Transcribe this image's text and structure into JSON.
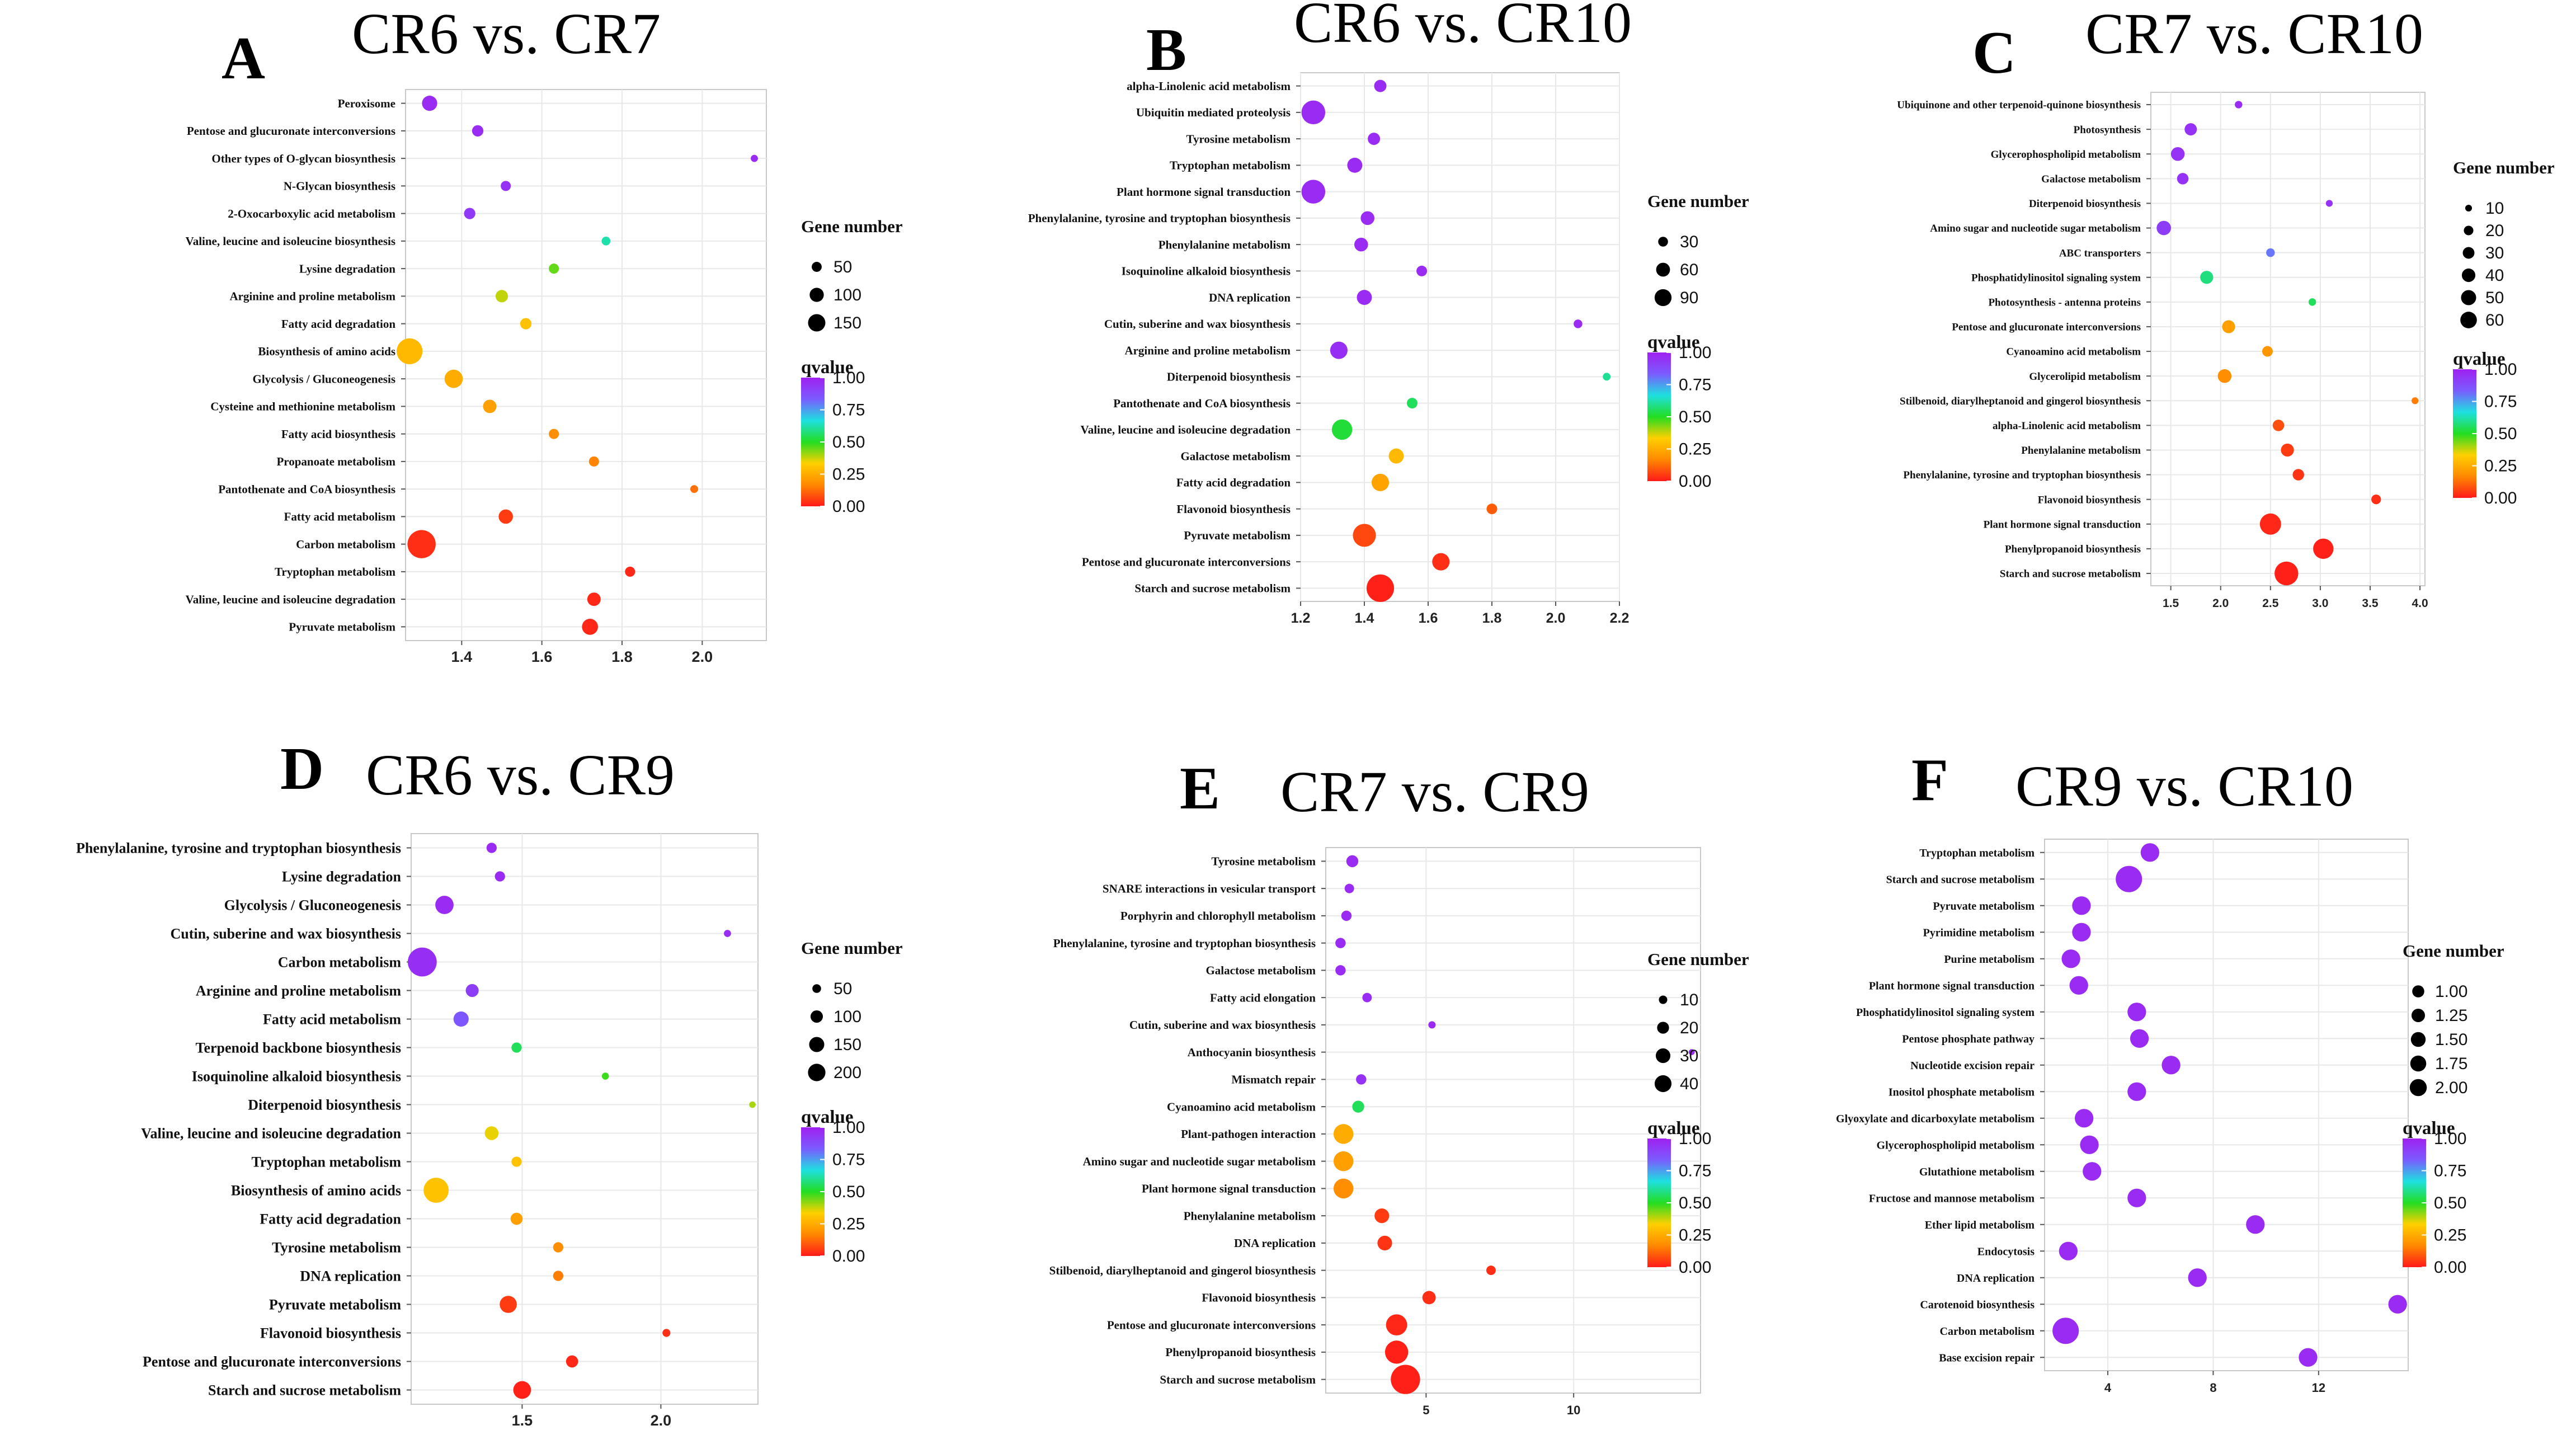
{
  "legend_labels": {
    "size_title": "Gene number",
    "color_title": "qvalue"
  },
  "colors": {
    "gradient": [
      "#ff1a1a",
      "#ff8800",
      "#ffd000",
      "#22dd22",
      "#1ee0e0",
      "#7a5cff",
      "#a020f0"
    ],
    "panel_bg": "#ffffff",
    "grid": "#e8e8e8"
  },
  "chart_data": [
    {
      "type": "scatter",
      "letter": "A",
      "title": "CR6 vs. CR7",
      "xlim": [
        1.26,
        2.16
      ],
      "xticks": [
        "1.4",
        "1.6",
        "1.8",
        "2.0"
      ],
      "xtick_values": [
        1.4,
        1.6,
        1.8,
        2.0
      ],
      "size_legend": [
        50,
        100,
        150
      ],
      "size_max": 160,
      "color_ticks": [
        "1.00",
        "0.75",
        "0.50",
        "0.25",
        "0.00"
      ],
      "points": [
        {
          "label": "Peroxisome",
          "x": 1.32,
          "size": 45,
          "q": 0.97
        },
        {
          "label": "Pentose and glucuronate interconversions",
          "x": 1.44,
          "size": 25,
          "q": 0.97
        },
        {
          "label": "Other types of O-glycan biosynthesis",
          "x": 2.13,
          "size": 10,
          "q": 0.97
        },
        {
          "label": "N-Glycan biosynthesis",
          "x": 1.51,
          "size": 20,
          "q": 0.95
        },
        {
          "label": "2-Oxocarboxylic acid metabolism",
          "x": 1.42,
          "size": 25,
          "q": 0.93
        },
        {
          "label": "Valine, leucine and isoleucine biosynthesis",
          "x": 1.76,
          "size": 15,
          "q": 0.62
        },
        {
          "label": "Lysine degradation",
          "x": 1.63,
          "size": 20,
          "q": 0.45
        },
        {
          "label": "Arginine and proline metabolism",
          "x": 1.5,
          "size": 30,
          "q": 0.38
        },
        {
          "label": "Fatty acid degradation",
          "x": 1.56,
          "size": 25,
          "q": 0.3
        },
        {
          "label": "Biosynthesis of amino acids",
          "x": 1.27,
          "size": 130,
          "q": 0.28
        },
        {
          "label": "Glycolysis / Gluconeogenesis",
          "x": 1.38,
          "size": 65,
          "q": 0.25
        },
        {
          "label": "Cysteine and methionine metabolism",
          "x": 1.47,
          "size": 35,
          "q": 0.22
        },
        {
          "label": "Fatty acid biosynthesis",
          "x": 1.63,
          "size": 20,
          "q": 0.18
        },
        {
          "label": "Propanoate metabolism",
          "x": 1.73,
          "size": 20,
          "q": 0.16
        },
        {
          "label": "Pantothenate and CoA biosynthesis",
          "x": 1.98,
          "size": 12,
          "q": 0.13
        },
        {
          "label": "Fatty acid metabolism",
          "x": 1.51,
          "size": 40,
          "q": 0.05
        },
        {
          "label": "Carbon metabolism",
          "x": 1.3,
          "size": 155,
          "q": 0.03
        },
        {
          "label": "Tryptophan metabolism",
          "x": 1.82,
          "size": 20,
          "q": 0.02
        },
        {
          "label": "Valine, leucine and isoleucine degradation",
          "x": 1.73,
          "size": 35,
          "q": 0.02
        },
        {
          "label": "Pyruvate metabolism",
          "x": 1.72,
          "size": 50,
          "q": 0.02
        }
      ]
    },
    {
      "type": "scatter",
      "letter": "B",
      "title": "CR6 vs. CR10",
      "xlim": [
        1.2,
        2.2
      ],
      "xticks": [
        "1.2",
        "1.4",
        "1.6",
        "1.8",
        "2.0",
        "2.2"
      ],
      "xtick_values": [
        1.2,
        1.4,
        1.6,
        1.8,
        2.0,
        2.2
      ],
      "size_legend": [
        30,
        60,
        90
      ],
      "size_max": 100,
      "color_ticks": [
        "1.00",
        "0.75",
        "0.50",
        "0.25",
        "0.00"
      ],
      "points": [
        {
          "label": "alpha-Linolenic acid metabolism",
          "x": 1.45,
          "size": 20,
          "q": 0.97
        },
        {
          "label": "Ubiquitin mediated proteolysis",
          "x": 1.24,
          "size": 75,
          "q": 0.97
        },
        {
          "label": "Tyrosine metabolism",
          "x": 1.43,
          "size": 20,
          "q": 0.97
        },
        {
          "label": "Tryptophan metabolism",
          "x": 1.37,
          "size": 30,
          "q": 0.97
        },
        {
          "label": "Plant hormone signal transduction",
          "x": 1.24,
          "size": 75,
          "q": 0.97
        },
        {
          "label": "Phenylalanine, tyrosine and tryptophan biosynthesis",
          "x": 1.41,
          "size": 25,
          "q": 0.97
        },
        {
          "label": "Phenylalanine metabolism",
          "x": 1.39,
          "size": 25,
          "q": 0.97
        },
        {
          "label": "Isoquinoline alkaloid biosynthesis",
          "x": 1.58,
          "size": 15,
          "q": 0.97
        },
        {
          "label": "DNA replication",
          "x": 1.4,
          "size": 30,
          "q": 0.97
        },
        {
          "label": "Cutin, suberine and wax biosynthesis",
          "x": 2.07,
          "size": 10,
          "q": 0.97
        },
        {
          "label": "Arginine and proline metabolism",
          "x": 1.32,
          "size": 40,
          "q": 0.96
        },
        {
          "label": "Diterpenoid biosynthesis",
          "x": 2.16,
          "size": 8,
          "q": 0.6
        },
        {
          "label": "Pantothenate and CoA biosynthesis",
          "x": 1.55,
          "size": 15,
          "q": 0.55
        },
        {
          "label": "Valine, leucine and isoleucine degradation",
          "x": 1.33,
          "size": 55,
          "q": 0.52
        },
        {
          "label": "Galactose metabolism",
          "x": 1.5,
          "size": 30,
          "q": 0.28
        },
        {
          "label": "Fatty acid degradation",
          "x": 1.45,
          "size": 40,
          "q": 0.23
        },
        {
          "label": "Flavonoid biosynthesis",
          "x": 1.8,
          "size": 15,
          "q": 0.1
        },
        {
          "label": "Pyruvate metabolism",
          "x": 1.4,
          "size": 70,
          "q": 0.07
        },
        {
          "label": "Pentose and glucuronate interconversions",
          "x": 1.64,
          "size": 40,
          "q": 0.03
        },
        {
          "label": "Starch and sucrose metabolism",
          "x": 1.45,
          "size": 100,
          "q": 0.01
        }
      ]
    },
    {
      "type": "scatter",
      "letter": "C",
      "title": "CR7 vs. CR10",
      "xlim": [
        1.3,
        4.05
      ],
      "xticks": [
        "1.5",
        "2.0",
        "2.5",
        "3.0",
        "3.5",
        "4.0"
      ],
      "xtick_values": [
        1.5,
        2.0,
        2.5,
        3.0,
        3.5,
        4.0
      ],
      "size_legend": [
        10,
        20,
        30,
        40,
        50,
        60
      ],
      "size_max": 70,
      "color_ticks": [
        "1.00",
        "0.75",
        "0.50",
        "0.25",
        "0.00"
      ],
      "points": [
        {
          "label": "Ubiquinone and other terpenoid-quinone biosynthesis",
          "x": 2.18,
          "size": 6,
          "q": 0.97
        },
        {
          "label": "Photosynthesis",
          "x": 1.7,
          "size": 16,
          "q": 0.95
        },
        {
          "label": "Glycerophospholipid metabolism",
          "x": 1.57,
          "size": 20,
          "q": 0.95
        },
        {
          "label": "Galactose metabolism",
          "x": 1.62,
          "size": 14,
          "q": 0.95
        },
        {
          "label": "Diterpenoid biosynthesis",
          "x": 3.09,
          "size": 5,
          "q": 0.95
        },
        {
          "label": "Amino sugar and nucleotide sugar metabolism",
          "x": 1.43,
          "size": 22,
          "q": 0.92
        },
        {
          "label": "ABC transporters",
          "x": 2.5,
          "size": 8,
          "q": 0.8
        },
        {
          "label": "Phosphatidylinositol signaling system",
          "x": 1.86,
          "size": 18,
          "q": 0.58
        },
        {
          "label": "Photosynthesis - antenna proteins",
          "x": 2.92,
          "size": 6,
          "q": 0.55
        },
        {
          "label": "Pentose and glucuronate interconversions",
          "x": 2.08,
          "size": 18,
          "q": 0.22
        },
        {
          "label": "Cyanoamino acid metabolism",
          "x": 2.47,
          "size": 12,
          "q": 0.2
        },
        {
          "label": "Glycerolipid metabolism",
          "x": 2.04,
          "size": 20,
          "q": 0.18
        },
        {
          "label": "Stilbenoid, diarylheptanoid and gingerol biosynthesis",
          "x": 3.95,
          "size": 5,
          "q": 0.15
        },
        {
          "label": "alpha-Linolenic acid metabolism",
          "x": 2.58,
          "size": 14,
          "q": 0.08
        },
        {
          "label": "Phenylalanine metabolism",
          "x": 2.67,
          "size": 18,
          "q": 0.05
        },
        {
          "label": "Phenylalanine, tyrosine and tryptophan biosynthesis",
          "x": 2.78,
          "size": 14,
          "q": 0.04
        },
        {
          "label": "Flavonoid biosynthesis",
          "x": 3.56,
          "size": 10,
          "q": 0.03
        },
        {
          "label": "Plant hormone signal transduction",
          "x": 2.5,
          "size": 48,
          "q": 0.02
        },
        {
          "label": "Phenylpropanoid biosynthesis",
          "x": 3.03,
          "size": 44,
          "q": 0.01
        },
        {
          "label": "Starch and sucrose metabolism",
          "x": 2.66,
          "size": 60,
          "q": 0.01
        }
      ]
    },
    {
      "type": "scatter",
      "letter": "D",
      "title": "CR6 vs. CR9",
      "xlim": [
        1.1,
        2.35
      ],
      "xticks": [
        "1.5",
        "2.0"
      ],
      "xtick_values": [
        1.5,
        2.0
      ],
      "size_legend": [
        50,
        100,
        150,
        200
      ],
      "size_max": 210,
      "color_ticks": [
        "1.00",
        "0.75",
        "0.50",
        "0.25",
        "0.00"
      ],
      "points": [
        {
          "label": "Phenylalanine, tyrosine and tryptophan biosynthesis",
          "x": 1.39,
          "size": 25,
          "q": 0.97
        },
        {
          "label": "Lysine degradation",
          "x": 1.42,
          "size": 25,
          "q": 0.97
        },
        {
          "label": "Glycolysis / Gluconeogenesis",
          "x": 1.22,
          "size": 80,
          "q": 0.97
        },
        {
          "label": "Cutin, suberine and wax biosynthesis",
          "x": 2.24,
          "size": 12,
          "q": 0.97
        },
        {
          "label": "Carbon metabolism",
          "x": 1.14,
          "size": 200,
          "q": 0.96
        },
        {
          "label": "Arginine and proline metabolism",
          "x": 1.32,
          "size": 40,
          "q": 0.92
        },
        {
          "label": "Fatty acid metabolism",
          "x": 1.28,
          "size": 55,
          "q": 0.85
        },
        {
          "label": "Terpenoid backbone biosynthesis",
          "x": 1.48,
          "size": 25,
          "q": 0.55
        },
        {
          "label": "Isoquinoline alkaloid biosynthesis",
          "x": 1.8,
          "size": 12,
          "q": 0.48
        },
        {
          "label": "Diterpenoid biosynthesis",
          "x": 2.33,
          "size": 10,
          "q": 0.4
        },
        {
          "label": "Valine, leucine and isoleucine degradation",
          "x": 1.39,
          "size": 45,
          "q": 0.35
        },
        {
          "label": "Tryptophan metabolism",
          "x": 1.48,
          "size": 25,
          "q": 0.3
        },
        {
          "label": "Biosynthesis of amino acids",
          "x": 1.19,
          "size": 150,
          "q": 0.3
        },
        {
          "label": "Fatty acid degradation",
          "x": 1.48,
          "size": 35,
          "q": 0.22
        },
        {
          "label": "Tyrosine metabolism",
          "x": 1.63,
          "size": 25,
          "q": 0.18
        },
        {
          "label": "DNA replication",
          "x": 1.63,
          "size": 25,
          "q": 0.15
        },
        {
          "label": "Pyruvate metabolism",
          "x": 1.45,
          "size": 70,
          "q": 0.05
        },
        {
          "label": "Flavonoid biosynthesis",
          "x": 2.02,
          "size": 15,
          "q": 0.03
        },
        {
          "label": "Pentose and glucuronate interconversions",
          "x": 1.68,
          "size": 35,
          "q": 0.02
        },
        {
          "label": "Starch and sucrose metabolism",
          "x": 1.5,
          "size": 75,
          "q": 0.01
        }
      ]
    },
    {
      "type": "scatter",
      "letter": "E",
      "title": "CR7 vs. CR9",
      "xlim": [
        1.6,
        14.3
      ],
      "xticks": [
        "5",
        "10"
      ],
      "xtick_values": [
        5,
        10
      ],
      "size_legend": [
        10,
        20,
        30,
        40
      ],
      "size_max": 45,
      "color_ticks": [
        "1.00",
        "0.75",
        "0.50",
        "0.25",
        "0.00"
      ],
      "points": [
        {
          "label": "Tyrosine metabolism",
          "x": 2.5,
          "size": 8,
          "q": 0.97
        },
        {
          "label": "SNARE interactions in vesicular transport",
          "x": 2.4,
          "size": 5,
          "q": 0.97
        },
        {
          "label": "Porphyrin and chlorophyll metabolism",
          "x": 2.3,
          "size": 6,
          "q": 0.97
        },
        {
          "label": "Phenylalanine, tyrosine and tryptophan biosynthesis",
          "x": 2.1,
          "size": 6,
          "q": 0.97
        },
        {
          "label": "Galactose metabolism",
          "x": 2.1,
          "size": 6,
          "q": 0.97
        },
        {
          "label": "Fatty acid elongation",
          "x": 3.0,
          "size": 5,
          "q": 0.97
        },
        {
          "label": "Cutin, suberine and wax biosynthesis",
          "x": 5.2,
          "size": 3,
          "q": 0.97
        },
        {
          "label": "Anthocyanin biosynthesis",
          "x": 14.0,
          "size": 2,
          "q": 0.97
        },
        {
          "label": "Mismatch repair",
          "x": 2.8,
          "size": 6,
          "q": 0.95
        },
        {
          "label": "Cyanoamino acid metabolism",
          "x": 2.7,
          "size": 8,
          "q": 0.55
        },
        {
          "label": "Plant-pathogen interaction",
          "x": 2.2,
          "size": 22,
          "q": 0.25
        },
        {
          "label": "Amino sugar and nucleotide sugar metabolism",
          "x": 2.2,
          "size": 22,
          "q": 0.22
        },
        {
          "label": "Plant hormone signal transduction",
          "x": 2.2,
          "size": 22,
          "q": 0.18
        },
        {
          "label": "Phenylalanine metabolism",
          "x": 3.5,
          "size": 12,
          "q": 0.05
        },
        {
          "label": "DNA replication",
          "x": 3.6,
          "size": 12,
          "q": 0.04
        },
        {
          "label": "Stilbenoid, diarylheptanoid and gingerol biosynthesis",
          "x": 7.2,
          "size": 5,
          "q": 0.03
        },
        {
          "label": "Flavonoid biosynthesis",
          "x": 5.1,
          "size": 10,
          "q": 0.03
        },
        {
          "label": "Pentose and glucuronate interconversions",
          "x": 4.0,
          "size": 25,
          "q": 0.02
        },
        {
          "label": "Phenylpropanoid biosynthesis",
          "x": 4.0,
          "size": 30,
          "q": 0.01
        },
        {
          "label": "Starch and sucrose metabolism",
          "x": 4.3,
          "size": 48,
          "q": 0.01
        }
      ]
    },
    {
      "type": "scatter",
      "letter": "F",
      "title": "CR9 vs. CR10",
      "xlim": [
        1.6,
        15.4
      ],
      "xticks": [
        "4",
        "8",
        "12"
      ],
      "xtick_values": [
        4,
        8,
        12
      ],
      "size_legend": [
        "1.00",
        "1.25",
        "1.50",
        "1.75",
        "2.00"
      ],
      "size_legend_values": [
        1.0,
        1.25,
        1.5,
        1.75,
        2.0
      ],
      "size_max": 2.2,
      "color_ticks": [
        "1.00",
        "0.75",
        "0.50",
        "0.25",
        "0.00"
      ],
      "points": [
        {
          "label": "Tryptophan metabolism",
          "x": 5.6,
          "size": 1.0,
          "q": 0.97
        },
        {
          "label": "Starch and sucrose metabolism",
          "x": 4.8,
          "size": 2.0,
          "q": 0.97
        },
        {
          "label": "Pyruvate metabolism",
          "x": 3.0,
          "size": 1.0,
          "q": 0.97
        },
        {
          "label": "Pyrimidine metabolism",
          "x": 3.0,
          "size": 1.0,
          "q": 0.97
        },
        {
          "label": "Purine metabolism",
          "x": 2.6,
          "size": 1.0,
          "q": 0.97
        },
        {
          "label": "Plant hormone signal transduction",
          "x": 2.9,
          "size": 1.0,
          "q": 0.97
        },
        {
          "label": "Phosphatidylinositol signaling system",
          "x": 5.1,
          "size": 1.0,
          "q": 0.97
        },
        {
          "label": "Pentose phosphate pathway",
          "x": 5.2,
          "size": 1.0,
          "q": 0.97
        },
        {
          "label": "Nucleotide excision repair",
          "x": 6.4,
          "size": 1.0,
          "q": 0.97
        },
        {
          "label": "Inositol phosphate metabolism",
          "x": 5.1,
          "size": 1.0,
          "q": 0.97
        },
        {
          "label": "Glyoxylate and dicarboxylate metabolism",
          "x": 3.1,
          "size": 1.0,
          "q": 0.97
        },
        {
          "label": "Glycerophospholipid metabolism",
          "x": 3.3,
          "size": 1.0,
          "q": 0.97
        },
        {
          "label": "Glutathione metabolism",
          "x": 3.4,
          "size": 1.0,
          "q": 0.97
        },
        {
          "label": "Fructose and mannose metabolism",
          "x": 5.1,
          "size": 1.0,
          "q": 0.97
        },
        {
          "label": "Ether lipid metabolism",
          "x": 9.6,
          "size": 1.0,
          "q": 0.97
        },
        {
          "label": "Endocytosis",
          "x": 2.5,
          "size": 1.0,
          "q": 0.97
        },
        {
          "label": "DNA replication",
          "x": 7.4,
          "size": 1.0,
          "q": 0.97
        },
        {
          "label": "Carotenoid biosynthesis",
          "x": 15.0,
          "size": 1.0,
          "q": 0.97
        },
        {
          "label": "Carbon metabolism",
          "x": 2.4,
          "size": 2.0,
          "q": 0.97
        },
        {
          "label": "Base excision repair",
          "x": 11.6,
          "size": 1.0,
          "q": 0.97
        }
      ]
    }
  ]
}
